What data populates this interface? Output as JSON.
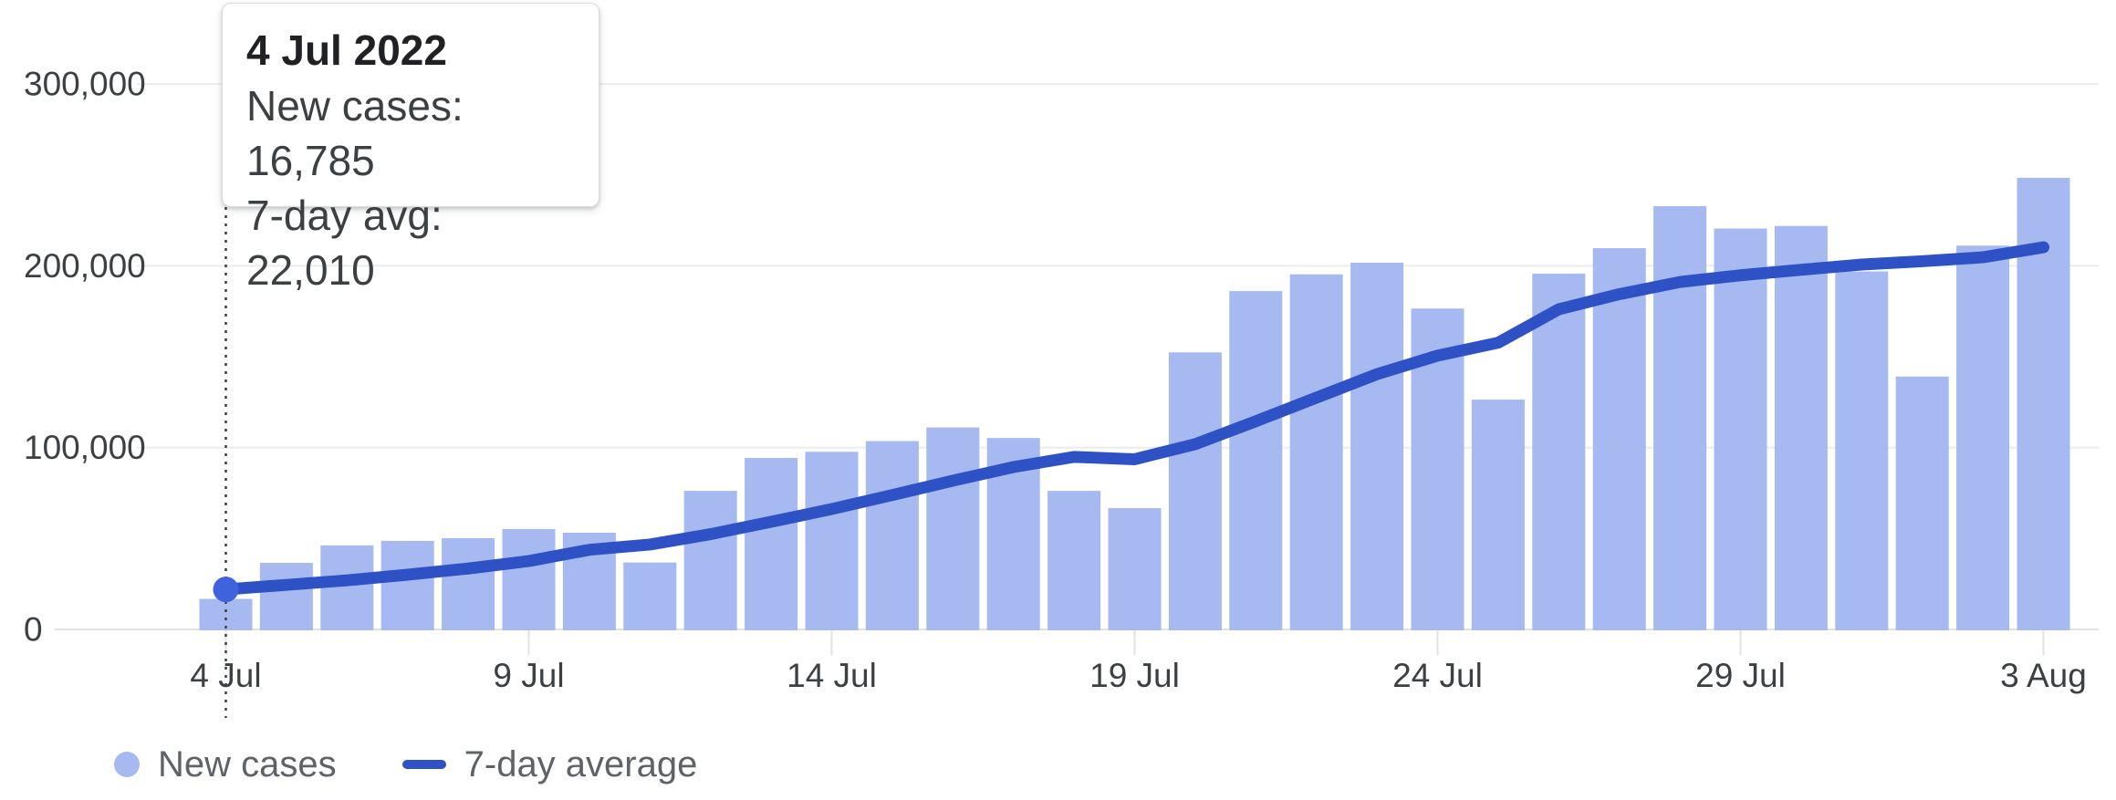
{
  "tooltip": {
    "title": "4 Jul 2022",
    "new_cases": "New cases: 16,785",
    "avg": "7-day avg: 22,010"
  },
  "legend": {
    "new_cases": "New cases",
    "avg": "7-day average"
  },
  "colors": {
    "bar": "#a6b9f0",
    "line": "#2e52c5",
    "marker_dot": "#3e63dc",
    "gridline": "#ececec",
    "baseline": "#e2e2e2",
    "tick": "#e2e2e2",
    "axis_text": "#3c4043",
    "legend_text": "#5f6368",
    "hover_line": "#3c4043",
    "tooltip_title": "#202124",
    "tooltip_text": "#3c4043"
  },
  "chart_data": {
    "type": "bar",
    "title": "",
    "xlabel": "",
    "ylabel": "",
    "grid": true,
    "legend_position": "bottom",
    "ylim": [
      0,
      330000
    ],
    "categories": [
      "4 Jul",
      "5 Jul",
      "6 Jul",
      "7 Jul",
      "8 Jul",
      "9 Jul",
      "10 Jul",
      "11 Jul",
      "12 Jul",
      "13 Jul",
      "14 Jul",
      "15 Jul",
      "16 Jul",
      "17 Jul",
      "18 Jul",
      "19 Jul",
      "20 Jul",
      "21 Jul",
      "22 Jul",
      "23 Jul",
      "24 Jul",
      "25 Jul",
      "26 Jul",
      "27 Jul",
      "28 Jul",
      "29 Jul",
      "30 Jul",
      "31 Jul",
      "1 Aug",
      "2 Aug",
      "3 Aug"
    ],
    "series": [
      {
        "name": "New cases",
        "type": "bar",
        "values": [
          16785,
          36600,
          46200,
          48700,
          50200,
          55200,
          53200,
          36800,
          76200,
          94300,
          97700,
          103600,
          111100,
          105300,
          76200,
          66700,
          152400,
          186100,
          195300,
          201700,
          176500,
          126400,
          195700,
          209700,
          232800,
          220500,
          221900,
          196900,
          139100,
          211100,
          248400
        ]
      },
      {
        "name": "7-day average",
        "type": "line",
        "values": [
          22010,
          24500,
          27000,
          30100,
          33500,
          37600,
          43800,
          46700,
          52400,
          59200,
          66200,
          73900,
          81800,
          89300,
          94900,
          93600,
          101900,
          114500,
          127500,
          140400,
          150600,
          157700,
          176100,
          184400,
          191100,
          194800,
          197800,
          200700,
          202500,
          204700,
          210200
        ]
      }
    ],
    "highlight_index": 0,
    "highlight_date": "4 Jul 2022",
    "highlight_new_cases": 16785,
    "highlight_avg": 22010,
    "x_tick_indices": [
      0,
      5,
      10,
      15,
      20,
      25,
      30
    ],
    "x_tick_labels": [
      "4 Jul",
      "9 Jul",
      "14 Jul",
      "19 Jul",
      "24 Jul",
      "29 Jul",
      "3 Aug"
    ],
    "y_ticks": [
      {
        "value": 0,
        "label": "0"
      },
      {
        "value": 100000,
        "label": "100,000"
      },
      {
        "value": 200000,
        "label": "200,000"
      },
      {
        "value": 300000,
        "label": "300,000"
      }
    ]
  }
}
